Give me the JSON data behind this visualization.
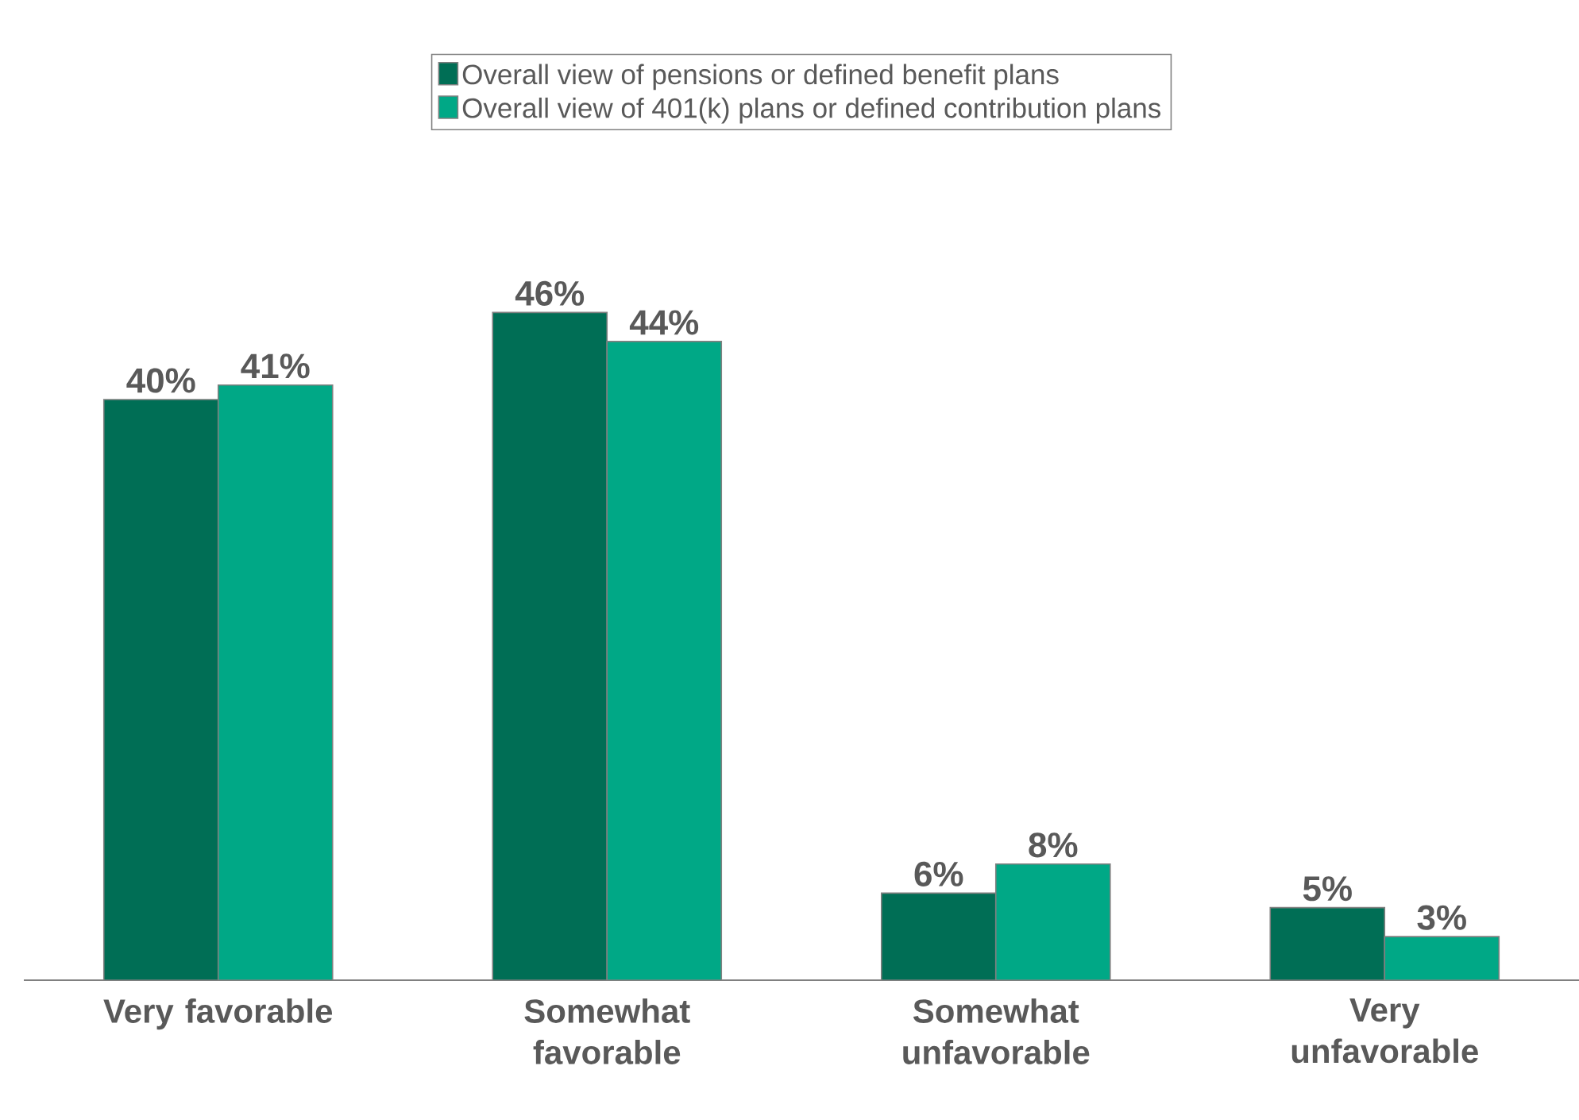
{
  "chart_data": {
    "type": "bar",
    "categories": [
      "Very favorable",
      "Somewhat favorable",
      "Somewhat unfavorable",
      "Very unfavorable"
    ],
    "series": [
      {
        "name": "Overall view of pensions or defined benefit plans",
        "color": "#006e55",
        "values": [
          40,
          46,
          6,
          5
        ],
        "value_labels": [
          "40%",
          "46%",
          "6%",
          "5%"
        ]
      },
      {
        "name": "Overall view of 401(k) plans or defined contribution plans",
        "color": "#00a886",
        "values": [
          41,
          44,
          8,
          3
        ],
        "value_labels": [
          "41%",
          "44%",
          "8%",
          "3%"
        ]
      }
    ],
    "legend": "top"
  }
}
